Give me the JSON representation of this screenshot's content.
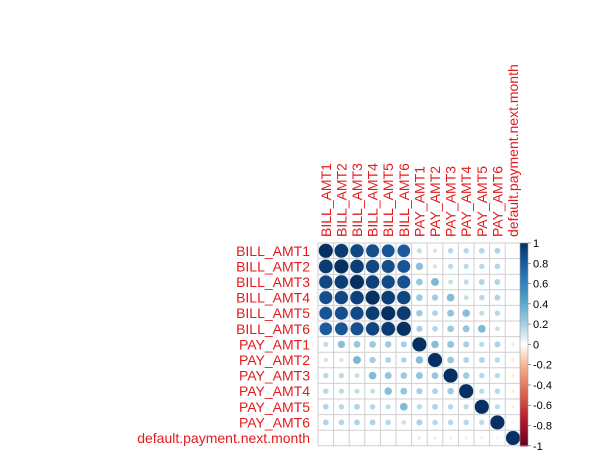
{
  "chart_data": {
    "type": "heatmap",
    "title": "",
    "variables": [
      "BILL_AMT1",
      "BILL_AMT2",
      "BILL_AMT3",
      "BILL_AMT4",
      "BILL_AMT5",
      "BILL_AMT6",
      "PAY_AMT1",
      "PAY_AMT2",
      "PAY_AMT3",
      "PAY_AMT4",
      "PAY_AMT5",
      "PAY_AMT6",
      "default.payment.next.month"
    ],
    "matrix": [
      [
        1.0,
        0.95,
        0.89,
        0.86,
        0.83,
        0.8,
        0.14,
        0.1,
        0.16,
        0.16,
        0.17,
        0.18,
        -0.02
      ],
      [
        0.95,
        1.0,
        0.93,
        0.89,
        0.86,
        0.83,
        0.28,
        0.1,
        0.15,
        0.15,
        0.16,
        0.17,
        -0.01
      ],
      [
        0.89,
        0.93,
        1.0,
        0.92,
        0.88,
        0.85,
        0.24,
        0.32,
        0.13,
        0.14,
        0.18,
        0.18,
        -0.01
      ],
      [
        0.86,
        0.89,
        0.92,
        1.0,
        0.94,
        0.9,
        0.23,
        0.21,
        0.3,
        0.13,
        0.16,
        0.18,
        -0.01
      ],
      [
        0.83,
        0.86,
        0.88,
        0.94,
        1.0,
        0.95,
        0.22,
        0.18,
        0.25,
        0.29,
        0.14,
        0.16,
        -0.01
      ],
      [
        0.8,
        0.83,
        0.85,
        0.9,
        0.95,
        1.0,
        0.2,
        0.17,
        0.23,
        0.25,
        0.31,
        0.12,
        -0.01
      ],
      [
        0.14,
        0.28,
        0.24,
        0.23,
        0.22,
        0.2,
        1.0,
        0.29,
        0.25,
        0.2,
        0.15,
        0.19,
        -0.07
      ],
      [
        0.1,
        0.1,
        0.32,
        0.21,
        0.18,
        0.17,
        0.29,
        1.0,
        0.24,
        0.18,
        0.18,
        0.16,
        -0.06
      ],
      [
        0.16,
        0.15,
        0.13,
        0.3,
        0.25,
        0.23,
        0.25,
        0.24,
        1.0,
        0.22,
        0.16,
        0.16,
        -0.06
      ],
      [
        0.16,
        0.15,
        0.14,
        0.13,
        0.29,
        0.25,
        0.2,
        0.18,
        0.22,
        1.0,
        0.15,
        0.16,
        -0.06
      ],
      [
        0.17,
        0.16,
        0.18,
        0.16,
        0.14,
        0.31,
        0.15,
        0.18,
        0.16,
        0.15,
        1.0,
        0.15,
        -0.06
      ],
      [
        0.18,
        0.17,
        0.18,
        0.18,
        0.16,
        0.12,
        0.19,
        0.16,
        0.16,
        0.16,
        0.15,
        1.0,
        -0.05
      ],
      [
        -0.02,
        -0.01,
        -0.01,
        -0.01,
        -0.01,
        -0.01,
        -0.07,
        -0.06,
        -0.06,
        -0.06,
        -0.06,
        -0.05,
        1.0
      ]
    ],
    "colorbar": {
      "ticks": [
        "1",
        "0.8",
        "0.6",
        "0.4",
        "0.2",
        "0",
        "-0.2",
        "-0.4",
        "-0.6",
        "-0.8",
        "-1"
      ],
      "range": [
        -1,
        1
      ]
    },
    "label_color": "#e41a1c",
    "colors": {
      "pos": "#053061",
      "mid": "#ffffff",
      "neg": "#67001f"
    },
    "grid": true
  }
}
